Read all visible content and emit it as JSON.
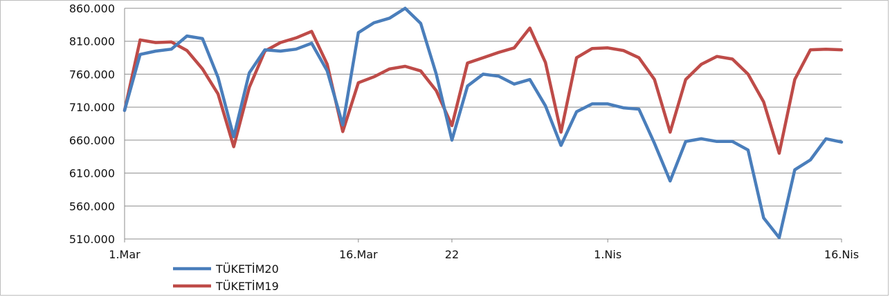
{
  "chart_data": {
    "type": "line",
    "x": [
      "1.Mar",
      "2.Mar",
      "3.Mar",
      "4.Mar",
      "5.Mar",
      "6.Mar",
      "7.Mar",
      "8.Mar",
      "9.Mar",
      "10.Mar",
      "11.Mar",
      "12.Mar",
      "13.Mar",
      "14.Mar",
      "15.Mar",
      "16.Mar",
      "17.Mar",
      "18.Mar",
      "19.Mar",
      "20.Mar",
      "21.Mar",
      "22",
      "23.Mar",
      "24.Mar",
      "25.Mar",
      "26.Mar",
      "27.Mar",
      "28.Mar",
      "29.Mar",
      "30.Mar",
      "31.Mar",
      "1.Nis",
      "2.Nis",
      "3.Nis",
      "4.Nis",
      "5.Nis",
      "6.Nis",
      "7.Nis",
      "8.Nis",
      "9.Nis",
      "10.Nis",
      "11.Nis",
      "12.Nis",
      "13.Nis",
      "14.Nis",
      "15.Nis",
      "16.Nis"
    ],
    "x_tick_labels": [
      {
        "index": 0,
        "label": "1.Mar"
      },
      {
        "index": 15,
        "label": "16.Mar"
      },
      {
        "index": 21,
        "label": "22"
      },
      {
        "index": 31,
        "label": "1.Nis"
      },
      {
        "index": 46,
        "label": "16.Nis"
      }
    ],
    "series": [
      {
        "name": "TÜKETİM20",
        "color": "#4a7ebb",
        "values": [
          705000,
          790000,
          795000,
          798000,
          818000,
          814000,
          755000,
          665000,
          762000,
          797000,
          795000,
          798000,
          807000,
          765000,
          683000,
          823000,
          838000,
          845000,
          860000,
          837000,
          760000,
          660000,
          742000,
          760000,
          757000,
          745000,
          752000,
          712000,
          652000,
          703000,
          715000,
          715000,
          709000,
          707000,
          655000,
          598000,
          658000,
          662000,
          658000,
          658000,
          645000,
          542000,
          512000,
          615000,
          630000,
          662000,
          657000
        ]
      },
      {
        "name": "TÜKETİM19",
        "color": "#be4b48",
        "values": [
          705000,
          812000,
          808000,
          809000,
          796000,
          768000,
          730000,
          650000,
          740000,
          795000,
          808000,
          815000,
          825000,
          775000,
          673000,
          747000,
          756000,
          768000,
          772000,
          765000,
          735000,
          682000,
          777000,
          785000,
          793000,
          800000,
          830000,
          778000,
          672000,
          785000,
          799000,
          800000,
          796000,
          785000,
          752000,
          672000,
          752000,
          775000,
          787000,
          783000,
          760000,
          718000,
          640000,
          752000,
          797000,
          798000,
          797000
        ]
      }
    ],
    "ylim": [
      510000,
      860000
    ],
    "y_tick_labels": [
      "510.000",
      "560.000",
      "610.000",
      "660.000",
      "710.000",
      "760.000",
      "810.000",
      "860.000"
    ],
    "title": "",
    "xlabel": "",
    "ylabel": "",
    "grid": "horizontal",
    "legend_position": "bottom-left"
  }
}
